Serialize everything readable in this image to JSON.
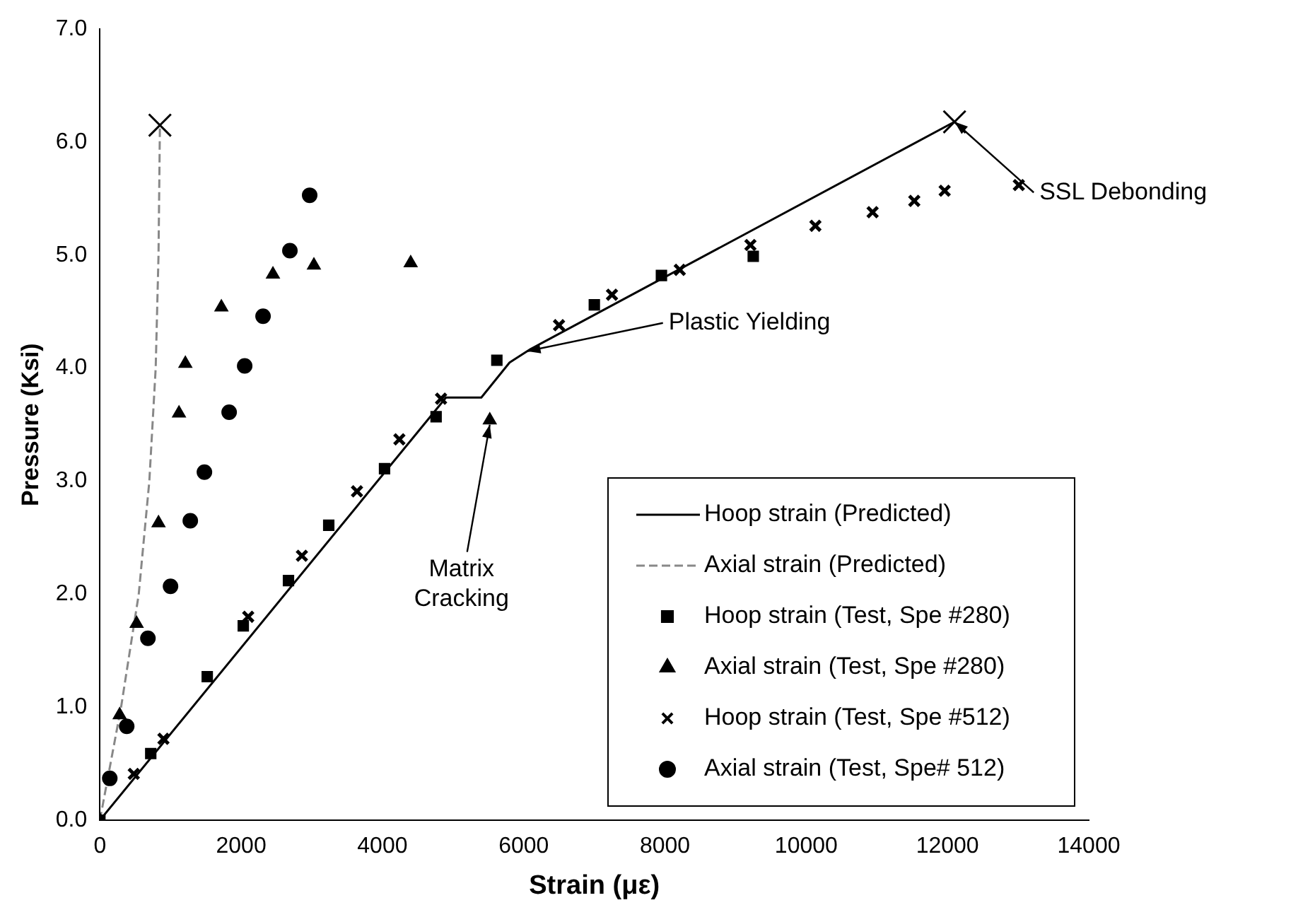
{
  "chart_data": {
    "type": "scatter",
    "xlabel": "Strain (με)",
    "ylabel": "Pressure (Ksi)",
    "xlim": [
      0,
      14000
    ],
    "xticks": [
      0,
      2000,
      4000,
      6000,
      8000,
      10000,
      12000,
      14000
    ],
    "ylim": [
      0,
      7
    ],
    "yticks": [
      {
        "value": 0,
        "label": "0.0"
      },
      {
        "value": 1,
        "label": "1.0"
      },
      {
        "value": 2,
        "label": "2.0"
      },
      {
        "value": 3,
        "label": "3.0"
      },
      {
        "value": 4,
        "label": "4.0"
      },
      {
        "value": 5,
        "label": "5.0"
      },
      {
        "value": 6,
        "label": "6.0"
      },
      {
        "value": 7,
        "label": "7.0"
      }
    ],
    "grid": false,
    "legend": "bottom right",
    "series": [
      {
        "name": "Hoop strain (Predicted)",
        "type": "line",
        "marker": "none",
        "line_style": "solid",
        "color": "#000000",
        "x": [
          0,
          4900,
          5400,
          5800,
          6100,
          12100
        ],
        "values": [
          0,
          3.74,
          3.74,
          4.05,
          4.17,
          6.18
        ]
      },
      {
        "name": "Axial strain (Predicted)",
        "type": "line",
        "marker": "none",
        "line_style": "dashed",
        "color": "#888888",
        "x": [
          0,
          300,
          550,
          700,
          790,
          830,
          850
        ],
        "values": [
          0,
          1.0,
          2.0,
          3.0,
          4.0,
          5.0,
          6.15
        ]
      },
      {
        "name": "Hoop strain (Test, Spe #280)",
        "type": "scatter",
        "marker": "square",
        "color": "#000000",
        "x": [
          0,
          720,
          1520,
          2030,
          2670,
          3240,
          4030,
          4760,
          5620,
          7000,
          7950,
          9250
        ],
        "values": [
          0,
          0.59,
          1.27,
          1.72,
          2.12,
          2.61,
          3.11,
          3.57,
          4.07,
          4.56,
          4.82,
          4.99
        ]
      },
      {
        "name": "Axial strain (Test, Spe #280)",
        "type": "scatter",
        "marker": "triangle",
        "color": "#000000",
        "x": [
          0,
          280,
          520,
          830,
          1120,
          1210,
          1720,
          2450,
          3030,
          4400,
          5520
        ],
        "values": [
          0,
          0.93,
          1.74,
          2.63,
          3.6,
          4.04,
          4.54,
          4.83,
          4.91,
          4.93,
          3.54
        ]
      },
      {
        "name": "Hoop strain (Test, Spe #512)",
        "type": "scatter",
        "marker": "cross",
        "color": "#000000",
        "x": [
          480,
          900,
          2100,
          2860,
          3640,
          4240,
          4830,
          6500,
          7250,
          8210,
          9210,
          10130,
          10940,
          11530,
          11960,
          13010
        ],
        "values": [
          0.41,
          0.72,
          1.8,
          2.34,
          2.91,
          3.37,
          3.73,
          4.38,
          4.65,
          4.87,
          5.09,
          5.26,
          5.38,
          5.48,
          5.57,
          5.62
        ]
      },
      {
        "name": "Axial strain (Test, Spe# 512)",
        "type": "scatter",
        "marker": "circle",
        "color": "#000000",
        "x": [
          140,
          380,
          680,
          1000,
          1280,
          1480,
          1830,
          2050,
          2310,
          2690,
          2970
        ],
        "values": [
          0.37,
          0.83,
          1.61,
          2.07,
          2.65,
          3.08,
          3.61,
          4.02,
          4.46,
          5.04,
          5.53
        ]
      },
      {
        "type": "scatter",
        "marker": "cross",
        "color": "#000000",
        "x": [
          850,
          12100
        ],
        "values": [
          6.15,
          6.18
        ]
      }
    ],
    "annotations": [
      {
        "text": "SSL Debonding",
        "x": 12100,
        "y": 6.18
      },
      {
        "text": "Plastic Yielding",
        "x": 6050,
        "y": 4.15
      },
      {
        "text": "Matrix Cracking",
        "x": 5520,
        "y": 3.5
      }
    ]
  }
}
